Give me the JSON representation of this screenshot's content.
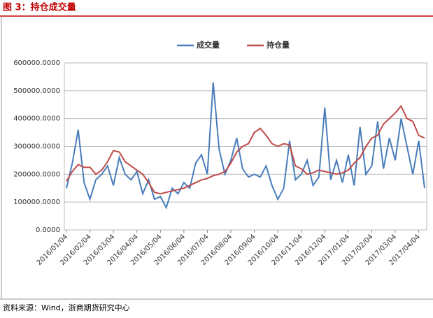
{
  "chart_data": {
    "type": "line",
    "title": "图 3：持仓成交量",
    "source": "资料来源：Wind，浙商期货研究中心",
    "categories": [
      "2016/01/04",
      null,
      null,
      null,
      "2016/02/04",
      null,
      null,
      null,
      "2016/03/04",
      null,
      null,
      null,
      "2016/04/04",
      null,
      null,
      null,
      "2016/05/04",
      null,
      null,
      null,
      "2016/06/04",
      null,
      null,
      null,
      "2016/07/04",
      null,
      null,
      null,
      "2016/08/04",
      null,
      null,
      null,
      "2016/09/04",
      null,
      null,
      null,
      "2016/10/04",
      null,
      null,
      null,
      "2016/11/04",
      null,
      null,
      null,
      "2016/12/04",
      null,
      null,
      null,
      "2017/01/04",
      null,
      null,
      null,
      "2017/02/04",
      null,
      null,
      null,
      "2017/03/04",
      null,
      null,
      null,
      "2017/04/04",
      null
    ],
    "series": [
      {
        "name": "成交量",
        "color": "#4a7ebb",
        "values": [
          150000,
          240000,
          360000,
          170000,
          110000,
          180000,
          200000,
          230000,
          160000,
          260000,
          200000,
          180000,
          210000,
          130000,
          180000,
          110000,
          120000,
          80000,
          150000,
          130000,
          170000,
          150000,
          240000,
          270000,
          200000,
          530000,
          290000,
          200000,
          250000,
          330000,
          220000,
          190000,
          200000,
          190000,
          230000,
          160000,
          110000,
          150000,
          320000,
          180000,
          200000,
          250000,
          160000,
          190000,
          440000,
          180000,
          250000,
          170000,
          270000,
          160000,
          370000,
          200000,
          230000,
          390000,
          220000,
          330000,
          250000,
          400000,
          300000,
          200000,
          320000,
          150000
        ]
      },
      {
        "name": "持仓量",
        "color": "#be4b48",
        "values": [
          175000,
          210000,
          235000,
          225000,
          225000,
          200000,
          215000,
          245000,
          285000,
          280000,
          245000,
          230000,
          215000,
          200000,
          170000,
          135000,
          130000,
          135000,
          140000,
          145000,
          150000,
          160000,
          170000,
          180000,
          185000,
          195000,
          200000,
          210000,
          240000,
          280000,
          300000,
          310000,
          350000,
          365000,
          340000,
          310000,
          300000,
          310000,
          305000,
          230000,
          220000,
          200000,
          205000,
          215000,
          210000,
          205000,
          200000,
          205000,
          215000,
          240000,
          260000,
          300000,
          330000,
          340000,
          380000,
          400000,
          420000,
          445000,
          400000,
          390000,
          340000,
          330000
        ]
      }
    ],
    "ylim": [
      0,
      600000
    ],
    "yticks": [
      {
        "value": 0,
        "label": "0.0000"
      },
      {
        "value": 100000,
        "label": "100000.0000"
      },
      {
        "value": 200000,
        "label": "200000.0000"
      },
      {
        "value": 300000,
        "label": "300000.0000"
      },
      {
        "value": 400000,
        "label": "400000.0000"
      },
      {
        "value": 500000,
        "label": "500000.0000"
      },
      {
        "value": 600000,
        "label": "600000.0000"
      }
    ],
    "grid": true,
    "legend": "top"
  }
}
